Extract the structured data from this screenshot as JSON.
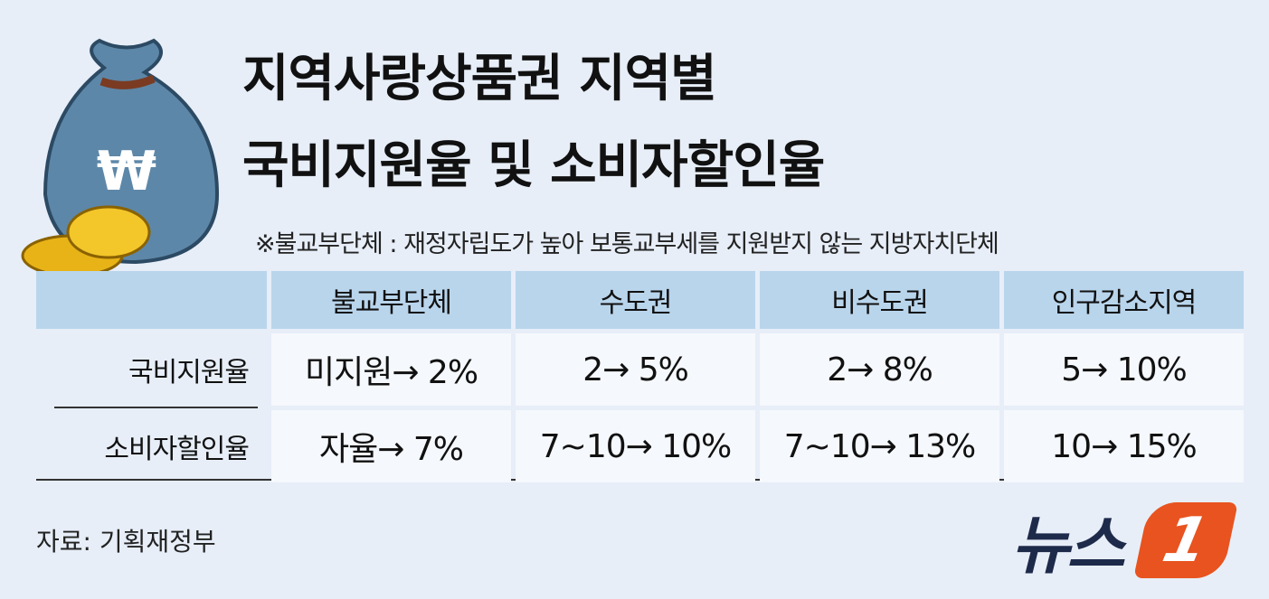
{
  "header": {
    "title": [
      "지역사랑상품권 지역별",
      "국비지원율 및 소비자할인율"
    ],
    "note": "※불교부단체 : 재정자립도가 높아 보통교부세를 지원받지 않는 지방자치단체"
  },
  "table": {
    "columns": [
      "불교부단체",
      "수도권",
      "비수도권",
      "인구감소지역"
    ],
    "rows": [
      {
        "label": "국비지원율",
        "cells": [
          "미지원→ 2%",
          "2→ 5%",
          "2→ 8%",
          "5→ 10%"
        ]
      },
      {
        "label": "소비자할인율",
        "cells": [
          "자율→ 7%",
          "7~10→ 10%",
          "7~10→ 13%",
          "10→ 15%"
        ]
      }
    ]
  },
  "footer": {
    "source": "자료: 기획재정부",
    "logo": {
      "text": "뉴스",
      "mark": "1"
    }
  }
}
